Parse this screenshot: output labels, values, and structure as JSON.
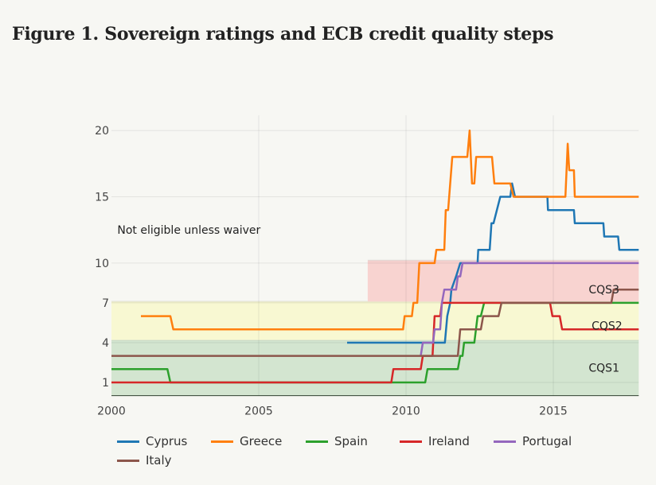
{
  "title": "Figure 1. Sovereign ratings and ECB credit quality steps",
  "chart_data": {
    "type": "line",
    "title": "Figure 1. Sovereign ratings and ECB credit quality steps",
    "xlabel": "",
    "ylabel": "",
    "xlim": [
      2000,
      2017.9
    ],
    "ylim": [
      0,
      21
    ],
    "x_ticks": [
      2000,
      2005,
      2010,
      2015
    ],
    "x_tick_labels": [
      "2000",
      "2005",
      "2010",
      "2015"
    ],
    "y_ticks": [
      1,
      4,
      7,
      10,
      15,
      20
    ],
    "y_tick_labels": [
      "1",
      "4",
      "7",
      "10",
      "15",
      "20"
    ],
    "grid": true,
    "legend_position": "bottom",
    "bands": [
      {
        "label": "CQS1",
        "y0": 0,
        "y1": 4.2,
        "x0": 2000,
        "x1": 2017.9,
        "color": "#d3e5d0"
      },
      {
        "label": "CQS2",
        "y0": 4.2,
        "y1": 7.1,
        "x0": 2000,
        "x1": 2017.9,
        "color": "#f8f8d2"
      },
      {
        "label": "CQS3",
        "y0": 7.1,
        "y1": 10.2,
        "x0": 2008.7,
        "x1": 2017.9,
        "color": "#f8d3d0"
      }
    ],
    "annotations": [
      {
        "text": "Not eligible unless waiver",
        "x": 2000.2,
        "y": 12.5
      },
      {
        "text": "CQS3",
        "x": 2016.2,
        "y": 8.0
      },
      {
        "text": "CQS2",
        "x": 2016.3,
        "y": 5.3
      },
      {
        "text": "CQS1",
        "x": 2016.2,
        "y": 2.1
      }
    ],
    "series": [
      {
        "name": "Cyprus",
        "color": "#1f77b4",
        "x": [
          2008.0,
          2011.32,
          2011.4,
          2011.5,
          2011.54,
          2011.7,
          2011.84,
          2012.43,
          2012.45,
          2012.84,
          2012.9,
          2012.97,
          2013.2,
          2013.54,
          2013.6,
          2013.7,
          2014.8,
          2014.82,
          2015.7,
          2015.73,
          2016.7,
          2016.73,
          2017.2,
          2017.24,
          2017.9
        ],
        "y": [
          4,
          4,
          6,
          7,
          8,
          9,
          10,
          10,
          11,
          11,
          13,
          13,
          15,
          15,
          16,
          15,
          15,
          14,
          14,
          13,
          13,
          12,
          12,
          11,
          11
        ]
      },
      {
        "name": "Greece",
        "color": "#ff7f0e",
        "x": [
          2001.0,
          2002.0,
          2002.1,
          2009.9,
          2009.95,
          2010.2,
          2010.25,
          2010.38,
          2010.45,
          2010.97,
          2011.03,
          2011.3,
          2011.35,
          2011.43,
          2011.57,
          2012.08,
          2012.16,
          2012.24,
          2012.32,
          2012.38,
          2012.92,
          2013.0,
          2013.54,
          2013.65,
          2015.41,
          2015.49,
          2015.54,
          2015.7,
          2015.73,
          2017.9
        ],
        "y": [
          6,
          6,
          5,
          5,
          6,
          6,
          7,
          7,
          10,
          10,
          11,
          11,
          14,
          14,
          18,
          18,
          20,
          16,
          16,
          18,
          18,
          16,
          16,
          15,
          15,
          19,
          17,
          17,
          15,
          15
        ]
      },
      {
        "name": "Spain",
        "color": "#2ca02c",
        "x": [
          2000.0,
          2001.9,
          2002.0,
          2010.65,
          2010.73,
          2011.76,
          2011.84,
          2011.92,
          2011.97,
          2012.32,
          2012.43,
          2012.54,
          2012.65,
          2017.9
        ],
        "y": [
          2,
          2,
          1,
          1,
          2,
          2,
          3,
          3,
          4,
          4,
          6,
          6,
          7,
          7
        ]
      },
      {
        "name": "Ireland",
        "color": "#d62728",
        "x": [
          2000.0,
          2009.5,
          2009.57,
          2010.5,
          2010.57,
          2010.9,
          2010.97,
          2011.16,
          2011.22,
          2014.89,
          2014.97,
          2015.22,
          2015.3,
          2017.9
        ],
        "y": [
          1,
          1,
          2,
          2,
          3,
          3,
          6,
          6,
          7,
          7,
          6,
          6,
          5,
          5
        ]
      },
      {
        "name": "Portugal",
        "color": "#9467bd",
        "x": [
          2010.5,
          2010.57,
          2010.92,
          2010.97,
          2011.16,
          2011.22,
          2011.3,
          2011.7,
          2011.76,
          2011.84,
          2011.92,
          2017.9
        ],
        "y": [
          3,
          4,
          4,
          5,
          5,
          7,
          8,
          8,
          9,
          9,
          10,
          10
        ]
      },
      {
        "name": "Italy",
        "color": "#8c564b",
        "x": [
          2000.0,
          2011.76,
          2011.84,
          2012.54,
          2012.62,
          2013.14,
          2013.24,
          2016.97,
          2017.05,
          2017.9
        ],
        "y": [
          3,
          3,
          5,
          5,
          6,
          6,
          7,
          7,
          8,
          8
        ]
      }
    ]
  }
}
